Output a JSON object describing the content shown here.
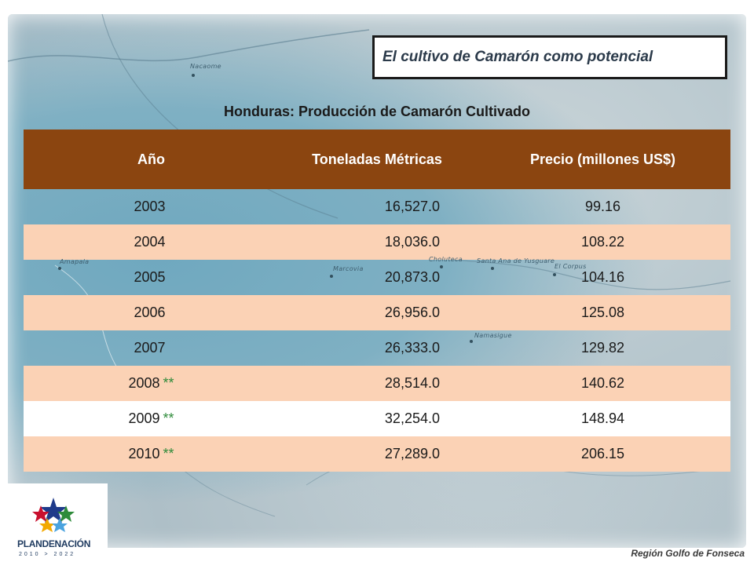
{
  "slide_title": "El cultivo de Camarón como potencial",
  "table_title": "Honduras: Producción de Camarón Cultivado",
  "table": {
    "headers": [
      "Año",
      "Toneladas Métricas",
      "Precio (millones US$)"
    ],
    "rows": [
      {
        "year": "2003",
        "mark": "",
        "tons": "16,527.0",
        "price": "99.16"
      },
      {
        "year": "2004",
        "mark": "",
        "tons": "18,036.0",
        "price": "108.22"
      },
      {
        "year": "2005",
        "mark": "",
        "tons": "20,873.0",
        "price": "104.16"
      },
      {
        "year": "2006",
        "mark": "",
        "tons": "26,956.0",
        "price": "125.08"
      },
      {
        "year": "2007",
        "mark": "",
        "tons": "26,333.0",
        "price": "129.82"
      },
      {
        "year": "2008",
        "mark": "**",
        "tons": "28,514.0",
        "price": "140.62"
      },
      {
        "year": "2009",
        "mark": "**",
        "tons": "32,254.0",
        "price": "148.94"
      },
      {
        "year": "2010",
        "mark": "**",
        "tons": "27,289.0",
        "price": "206.15"
      }
    ]
  },
  "map_labels": {
    "nacaome": "Nacaome",
    "amapala": "Amapala",
    "marcovia": "Marcovia",
    "choluteca": "Choluteca",
    "santa_ana": "Santa Ana de Yusguare",
    "el_corpus": "El Corpus",
    "namasigue": "Namasigue"
  },
  "logo": {
    "name": "PLANDENACIÓN",
    "years": "2010 > 2022"
  },
  "footer": "Región Golfo de Fonseca",
  "colors": {
    "header_bg": "#8b4510",
    "row_highlight": "#fbd2b5",
    "stars": "#2e8b3a"
  }
}
